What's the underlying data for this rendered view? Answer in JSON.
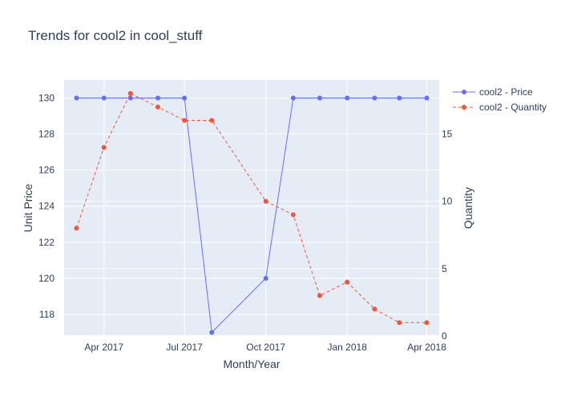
{
  "chart_data": {
    "type": "line",
    "title": "Trends for cool2 in cool_stuff",
    "xlabel": "Month/Year",
    "ylabel": "Unit Price",
    "y2label": "Quantity",
    "x_ticks": [
      "Apr 2017",
      "Jul 2017",
      "Oct 2017",
      "Jan 2018",
      "Apr 2018"
    ],
    "x": [
      "2017-03-01",
      "2017-04-01",
      "2017-05-01",
      "2017-06-01",
      "2017-07-01",
      "2017-08-01",
      "2017-10-01",
      "2017-11-01",
      "2017-12-01",
      "2018-01-01",
      "2018-02-01",
      "2018-03-01",
      "2018-04-01"
    ],
    "ylim": [
      116.8,
      131
    ],
    "y_ticks": [
      118,
      120,
      122,
      124,
      126,
      128,
      130
    ],
    "y2lim": [
      0,
      19
    ],
    "y2_ticks": [
      0,
      5,
      10,
      15
    ],
    "grid": true,
    "legend_position": "top-right",
    "series": [
      {
        "name": "cool2 - Price",
        "axis": "y",
        "color": "#636efa",
        "dash": "solid",
        "x": [
          "2017-03-01",
          "2017-04-01",
          "2017-05-01",
          "2017-06-01",
          "2017-07-01",
          "2017-08-01",
          "2017-10-01",
          "2017-11-01",
          "2017-12-01",
          "2018-01-01",
          "2018-02-01",
          "2018-03-01",
          "2018-04-01"
        ],
        "values": [
          130,
          130,
          130,
          130,
          130,
          117,
          120,
          130,
          130,
          130,
          130,
          130,
          130
        ]
      },
      {
        "name": "cool2 - Quantity",
        "axis": "y2",
        "color": "#ef553b",
        "dash": "dash",
        "x": [
          "2017-03-01",
          "2017-04-01",
          "2017-05-01",
          "2017-06-01",
          "2017-07-01",
          "2017-08-01",
          "2017-10-01",
          "2017-11-01",
          "2017-12-01",
          "2018-01-01",
          "2018-02-01",
          "2018-03-01",
          "2018-04-01"
        ],
        "values": [
          8,
          14,
          18,
          17,
          16,
          16,
          10,
          9,
          3,
          4,
          2,
          1,
          1
        ]
      }
    ]
  },
  "colors": {
    "plot_bg": "#e5ecf6",
    "grid": "#ffffff",
    "text": "#2a3f5f"
  }
}
